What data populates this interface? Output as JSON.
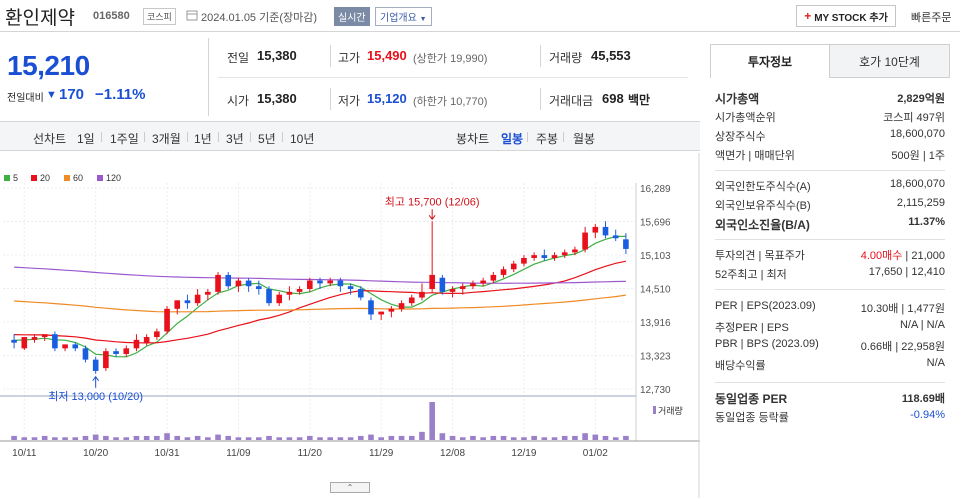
{
  "header": {
    "stock_name": "환인제약",
    "stock_code": "016580",
    "market": "코스피",
    "as_of": "2024.01.05 기준(장마감)",
    "realtime_label": "실시간",
    "corp_label": "기업개요",
    "mystock_label": "MY STOCK 추가",
    "quick_order_label": "빠른주문"
  },
  "quote": {
    "price": "15,210",
    "change_label": "전일대비",
    "change_value": "170",
    "change_pct": "−1.11%",
    "prev_label": "전일",
    "prev_value": "15,380",
    "high_label": "고가",
    "high_value": "15,490",
    "upper_limit": "(상한가 19,990)",
    "volume_label": "거래량",
    "volume_value": "45,553",
    "open_label": "시가",
    "open_value": "15,380",
    "low_label": "저가",
    "low_value": "15,120",
    "lower_limit": "(하한가 10,770)",
    "amount_label": "거래대금",
    "amount_value": "698",
    "amount_unit": "백만"
  },
  "period_bar": {
    "line_chart_label": "선차트",
    "periods": [
      "1일",
      "1주일",
      "3개월",
      "1년",
      "3년",
      "5년",
      "10년"
    ],
    "candle_chart_label": "봉차트",
    "candles": [
      "일봉",
      "주봉",
      "월봉"
    ],
    "selected_candle": "일봉"
  },
  "chart_data": {
    "type": "candlestick",
    "legend": [
      {
        "name": "5",
        "color": "#3cb043"
      },
      {
        "name": "20",
        "color": "#e8101a"
      },
      {
        "name": "60",
        "color": "#f08a24"
      },
      {
        "name": "120",
        "color": "#9b59d0"
      }
    ],
    "y_ticks": [
      "16,289",
      "15,696",
      "15,103",
      "14,510",
      "13,916",
      "13,323",
      "12,730"
    ],
    "ylim": [
      12730,
      16289
    ],
    "x_ticks": [
      "10/11",
      "10/20",
      "10/31",
      "11/09",
      "11/20",
      "11/29",
      "12/08",
      "12/19",
      "01/02"
    ],
    "x_tick_index": [
      1,
      8,
      15,
      22,
      29,
      36,
      43,
      50,
      57
    ],
    "high_annotation": "최고 15,700 (12/06)",
    "high_index": 41,
    "high_value": 15700,
    "low_annotation": "최저 13,000 (10/20)",
    "low_index": 8,
    "low_value": 13000,
    "volume_label": "거래량",
    "candles": [
      [
        13600,
        13700,
        13550,
        13450
      ],
      [
        13450,
        13600,
        13650,
        13420
      ],
      [
        13600,
        13700,
        13650,
        13550
      ],
      [
        13650,
        13700,
        13700,
        13580
      ],
      [
        13700,
        13750,
        13450,
        13400
      ],
      [
        13450,
        13500,
        13520,
        13400
      ],
      [
        13520,
        13560,
        13450,
        13400
      ],
      [
        13450,
        13500,
        13250,
        13200
      ],
      [
        13250,
        13300,
        13050,
        13000
      ],
      [
        13100,
        13450,
        13400,
        13050
      ],
      [
        13400,
        13450,
        13350,
        13300
      ],
      [
        13350,
        13500,
        13450,
        13300
      ],
      [
        13450,
        13700,
        13600,
        13400
      ],
      [
        13550,
        13700,
        13650,
        13500
      ],
      [
        13650,
        13800,
        13750,
        13600
      ],
      [
        13750,
        14200,
        14150,
        13700
      ],
      [
        14150,
        14300,
        14300,
        14050
      ],
      [
        14300,
        14400,
        14250,
        14150
      ],
      [
        14250,
        14500,
        14400,
        14200
      ],
      [
        14400,
        14500,
        14450,
        14300
      ],
      [
        14450,
        14800,
        14750,
        14400
      ],
      [
        14750,
        14800,
        14550,
        14500
      ],
      [
        14550,
        14700,
        14650,
        14450
      ],
      [
        14650,
        14700,
        14550,
        14450
      ],
      [
        14550,
        14650,
        14500,
        14400
      ],
      [
        14500,
        14550,
        14250,
        14200
      ],
      [
        14250,
        14450,
        14400,
        14200
      ],
      [
        14400,
        14550,
        14450,
        14300
      ],
      [
        14450,
        14550,
        14500,
        14400
      ],
      [
        14500,
        14700,
        14650,
        14450
      ],
      [
        14650,
        14700,
        14600,
        14500
      ],
      [
        14600,
        14700,
        14650,
        14550
      ],
      [
        14650,
        14700,
        14550,
        14450
      ],
      [
        14550,
        14600,
        14500,
        14400
      ],
      [
        14500,
        14550,
        14350,
        14300
      ],
      [
        14300,
        14350,
        14050,
        13950
      ],
      [
        14050,
        14100,
        14100,
        13950
      ],
      [
        14100,
        14200,
        14150,
        14000
      ],
      [
        14150,
        14300,
        14250,
        14100
      ],
      [
        14250,
        14400,
        14350,
        14200
      ],
      [
        14350,
        14600,
        14450,
        14300
      ],
      [
        14500,
        15700,
        14750,
        14450
      ],
      [
        14700,
        14750,
        14450,
        14400
      ],
      [
        14450,
        14550,
        14500,
        14350
      ],
      [
        14500,
        14600,
        14550,
        14400
      ],
      [
        14550,
        14650,
        14600,
        14500
      ],
      [
        14600,
        14700,
        14650,
        14550
      ],
      [
        14650,
        14800,
        14750,
        14600
      ],
      [
        14750,
        14900,
        14850,
        14700
      ],
      [
        14850,
        15000,
        14950,
        14800
      ],
      [
        14950,
        15100,
        15050,
        14900
      ],
      [
        15050,
        15150,
        15100,
        15000
      ],
      [
        15100,
        15200,
        15050,
        15000
      ],
      [
        15050,
        15150,
        15100,
        15000
      ],
      [
        15100,
        15200,
        15150,
        15050
      ],
      [
        15150,
        15250,
        15200,
        15100
      ],
      [
        15200,
        15600,
        15500,
        15150
      ],
      [
        15500,
        15650,
        15600,
        15400
      ],
      [
        15600,
        15700,
        15450,
        15400
      ],
      [
        15450,
        15550,
        15400,
        15350
      ],
      [
        15380,
        15490,
        15210,
        15120
      ]
    ],
    "volumes": [
      3,
      2,
      2,
      3,
      2,
      2,
      2,
      3,
      4,
      3,
      2,
      2,
      3,
      3,
      3,
      5,
      3,
      2,
      3,
      2,
      4,
      3,
      2,
      2,
      2,
      3,
      2,
      2,
      2,
      3,
      2,
      2,
      2,
      2,
      3,
      4,
      2,
      3,
      3,
      3,
      6,
      28,
      5,
      3,
      2,
      3,
      2,
      3,
      3,
      2,
      2,
      3,
      2,
      2,
      3,
      3,
      5,
      4,
      3,
      2,
      3
    ]
  },
  "right_panel": {
    "tabs": [
      "투자정보",
      "호가 10단계"
    ],
    "rows": [
      {
        "k": "시가총액",
        "v": "2,829억원",
        "bold": true
      },
      {
        "k": "시가총액순위",
        "v": "코스피 497위"
      },
      {
        "k": "상장주식수",
        "v": "18,600,070"
      },
      {
        "k": "액면가 | 매매단위",
        "v": "500원 | 1주"
      },
      {
        "k": "외국인한도주식수(A)",
        "v": "18,600,070"
      },
      {
        "k": "외국인보유주식수(B)",
        "v": "2,115,259"
      },
      {
        "k": "외국인소진율(B/A)",
        "v": "11.37%",
        "bold": true
      },
      {
        "k": "투자의견 | 목표주가",
        "v_red": "4.00매수",
        "v": " | 21,000"
      },
      {
        "k": "52주최고 | 최저",
        "v": "17,650 | 12,410"
      },
      {
        "k": "PER | EPS(2023.09)",
        "v": "10.30배 | 1,477원"
      },
      {
        "k": "추정PER | EPS",
        "v": "N/A | N/A"
      },
      {
        "k": "PBR | BPS (2023.09)",
        "v": "0.66배 | 22,958원"
      },
      {
        "k": "배당수익률",
        "v": "N/A"
      },
      {
        "k": "동일업종 PER",
        "v": "118.69배",
        "bold": true
      },
      {
        "k": "동일업종 등락률",
        "v_blue": "-0.94%"
      }
    ]
  }
}
